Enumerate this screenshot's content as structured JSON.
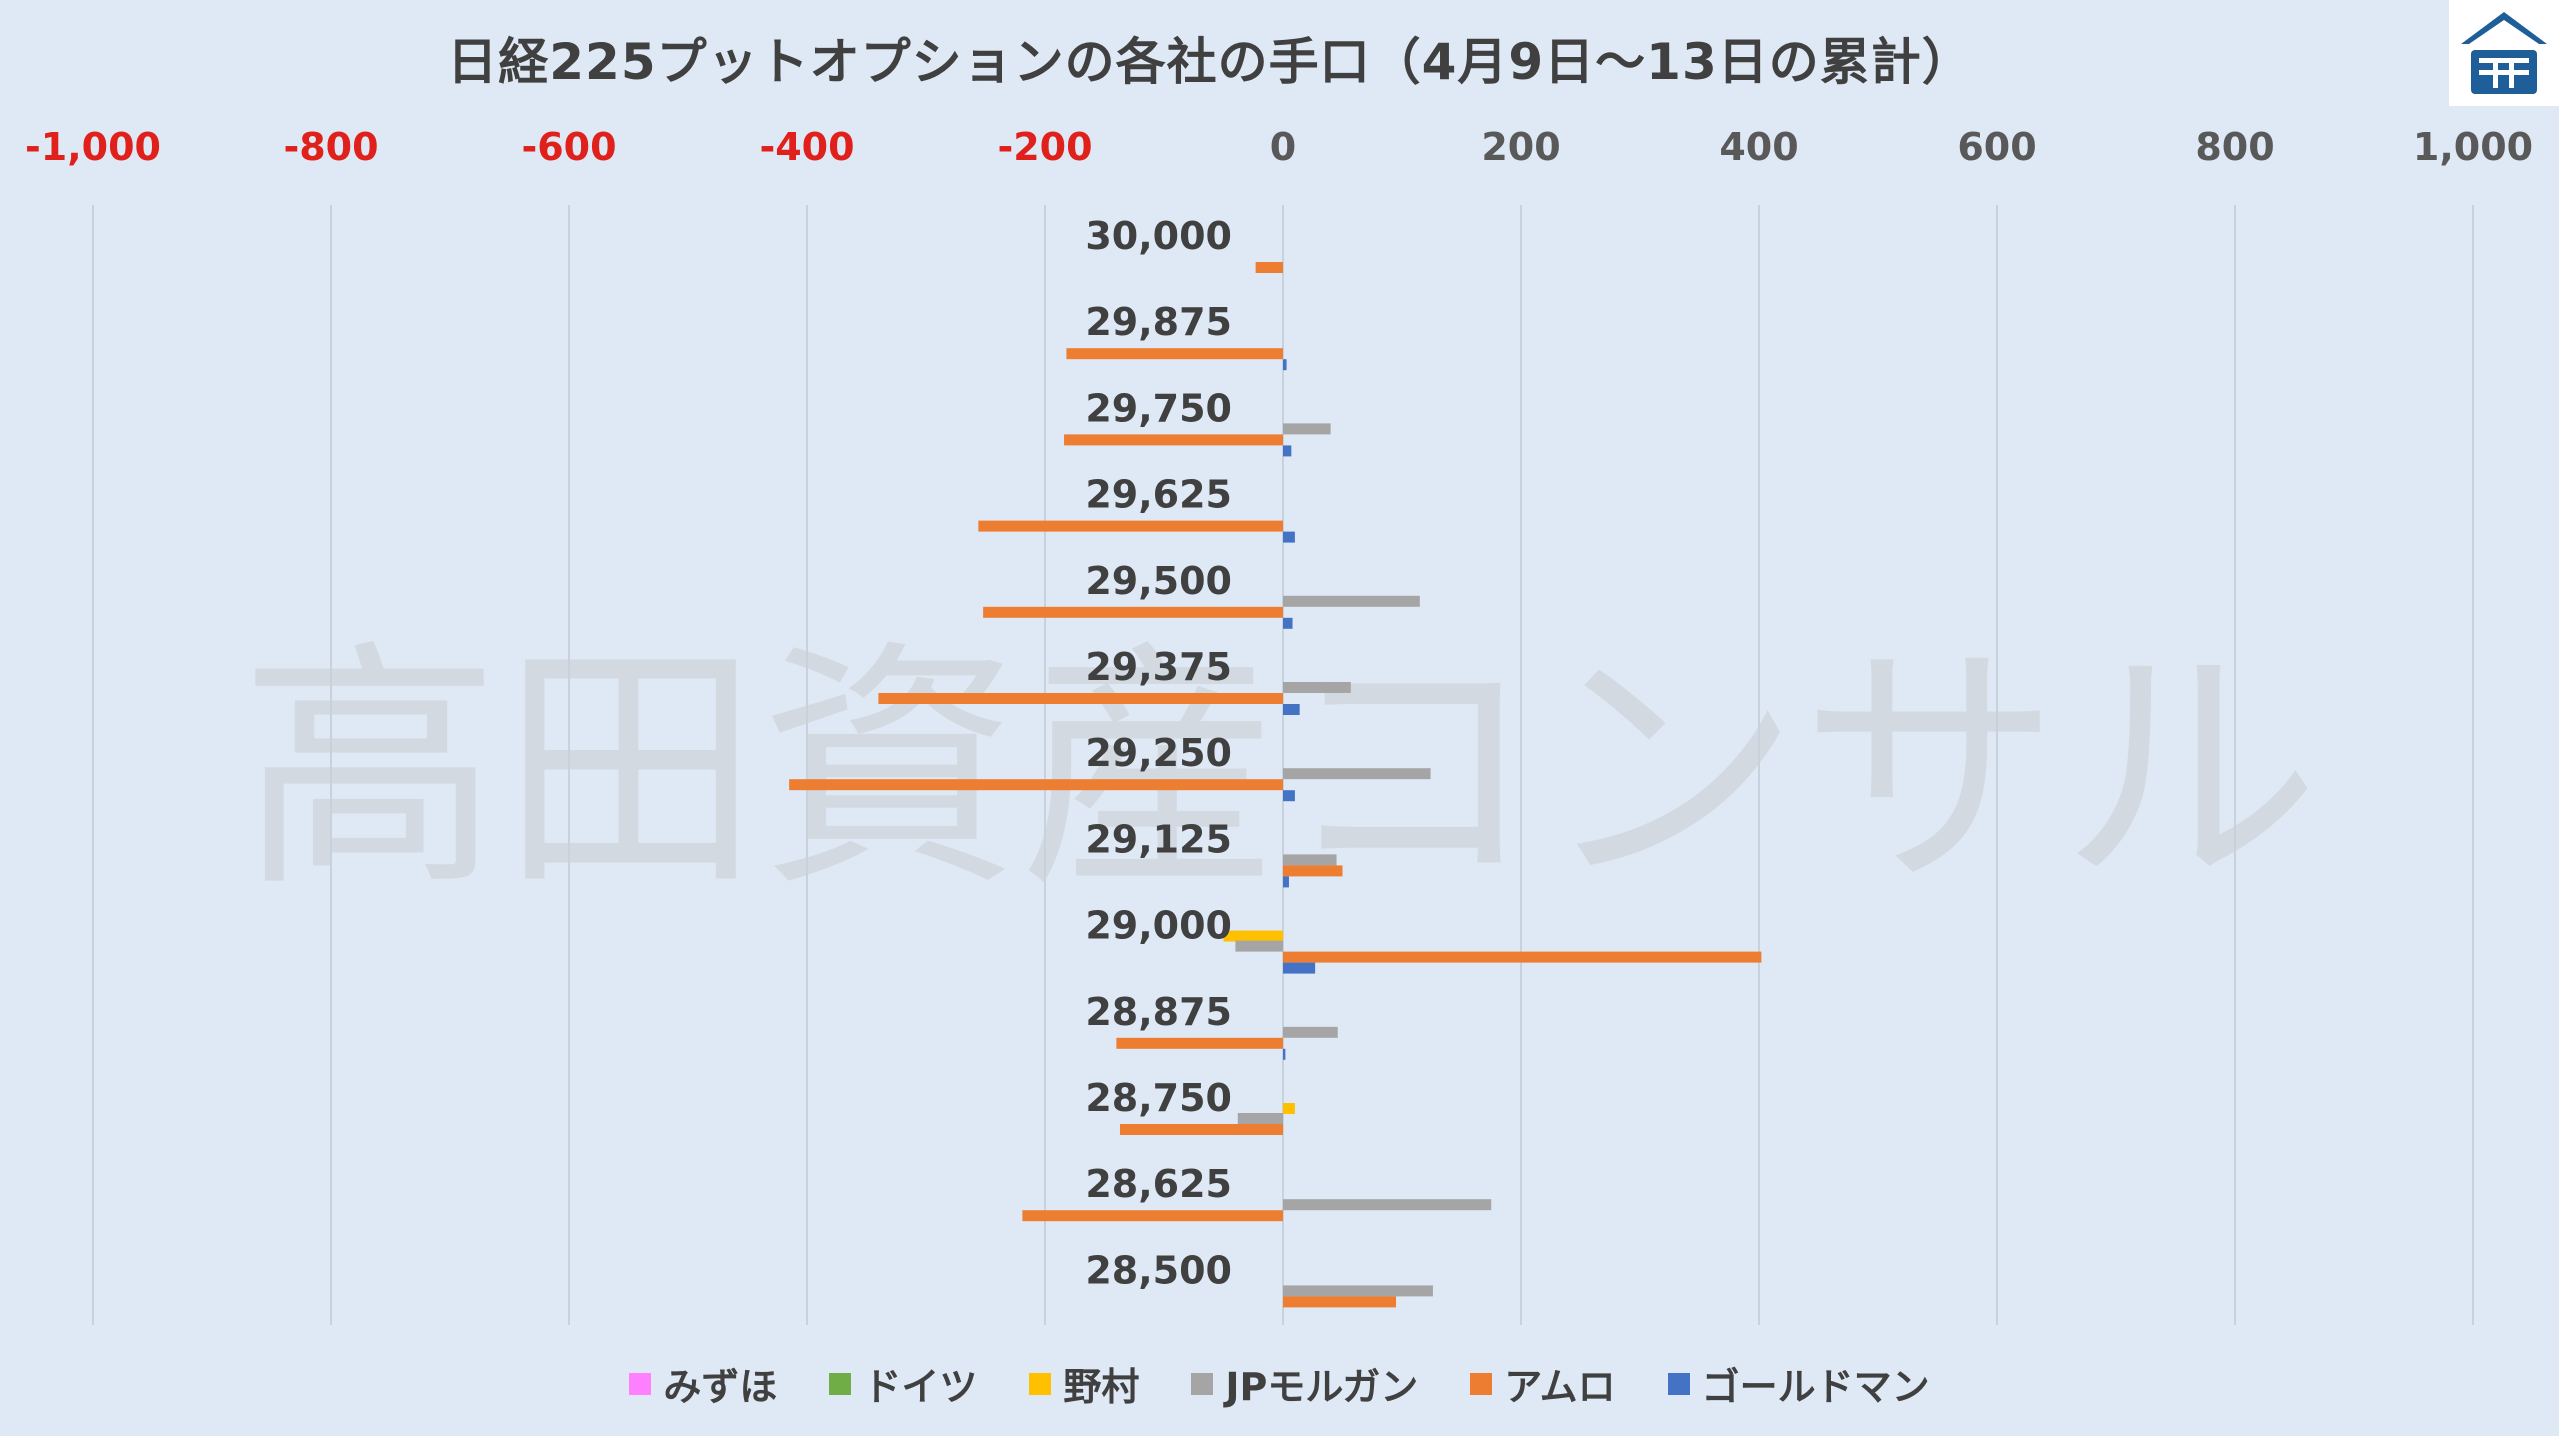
{
  "chart_data": {
    "type": "bar",
    "orientation": "horizontal",
    "title": "日経225プットオプションの各社の手口（4月9日～13日の累計）",
    "xlim": [
      -1000,
      1000
    ],
    "x_ticks": [
      "-1,000",
      "-800",
      "-600",
      "-400",
      "-200",
      "0",
      "200",
      "400",
      "600",
      "800",
      "1,000"
    ],
    "x_tick_values": [
      -1000,
      -800,
      -600,
      -400,
      -200,
      0,
      200,
      400,
      600,
      800,
      1000
    ],
    "negative_tick_color": "#e0201b",
    "positive_tick_color": "#595959",
    "grid": "vertical",
    "legend_position": "bottom",
    "categories": [
      "30,000",
      "29,875",
      "29,750",
      "29,625",
      "29,500",
      "29,375",
      "29,250",
      "29,125",
      "29,000",
      "28,875",
      "28,750",
      "28,625",
      "28,500"
    ],
    "series": [
      {
        "name": "みずほ",
        "color": "#ff80ff",
        "values": [
          0,
          0,
          0,
          0,
          0,
          0,
          0,
          0,
          0,
          0,
          0,
          0,
          0
        ]
      },
      {
        "name": "ドイツ",
        "color": "#70ad47",
        "values": [
          0,
          0,
          0,
          0,
          0,
          0,
          0,
          0,
          0,
          0,
          0,
          0,
          0
        ]
      },
      {
        "name": "野村",
        "color": "#ffc000",
        "values": [
          0,
          0,
          0,
          0,
          0,
          0,
          0,
          0,
          -50,
          0,
          10,
          0,
          0
        ]
      },
      {
        "name": "JPモルガン",
        "color": "#a5a5a5",
        "values": [
          0,
          0,
          40,
          0,
          115,
          57,
          124,
          45,
          -40,
          46,
          -38,
          175,
          126
        ]
      },
      {
        "name": "アムロ",
        "color": "#ed7d31",
        "values": [
          -23,
          -182,
          -184,
          -256,
          -252,
          -340,
          -415,
          50,
          402,
          -140,
          -137,
          -219,
          95
        ]
      },
      {
        "name": "ゴールドマン",
        "color": "#4472c4",
        "values": [
          0,
          3,
          7,
          10,
          8,
          14,
          10,
          5,
          27,
          2,
          0,
          0,
          0
        ]
      }
    ],
    "watermark": "高田資産コンサル"
  }
}
